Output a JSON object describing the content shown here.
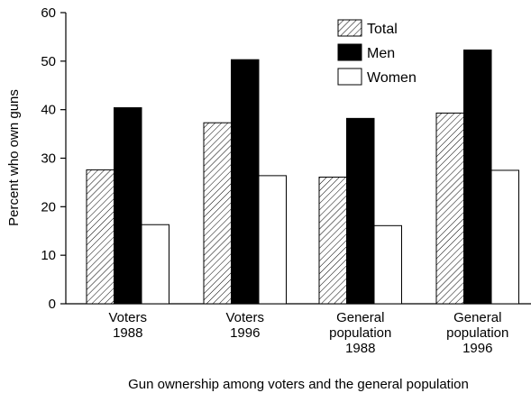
{
  "chart_data": {
    "type": "bar",
    "categories": [
      [
        "Voters",
        "1988"
      ],
      [
        "Voters",
        "1996"
      ],
      [
        "General",
        "population",
        "1988"
      ],
      [
        "General",
        "population",
        "1996"
      ]
    ],
    "series": [
      {
        "name": "Total",
        "values": [
          27.6,
          37.3,
          26.1,
          39.3
        ],
        "pattern": "hatch"
      },
      {
        "name": "Men",
        "values": [
          40.4,
          50.3,
          38.2,
          52.3
        ],
        "color": "#000000"
      },
      {
        "name": "Women",
        "values": [
          16.3,
          26.4,
          16.1,
          27.5
        ],
        "color": "#ffffff"
      }
    ],
    "ylabel": "Percent who own guns",
    "xlabel": "Gun ownership among voters and the general population",
    "ylim": [
      0,
      60
    ],
    "yticks": [
      0,
      10,
      20,
      30,
      40,
      50,
      60
    ],
    "grid": false,
    "legend_position": "top-right"
  }
}
